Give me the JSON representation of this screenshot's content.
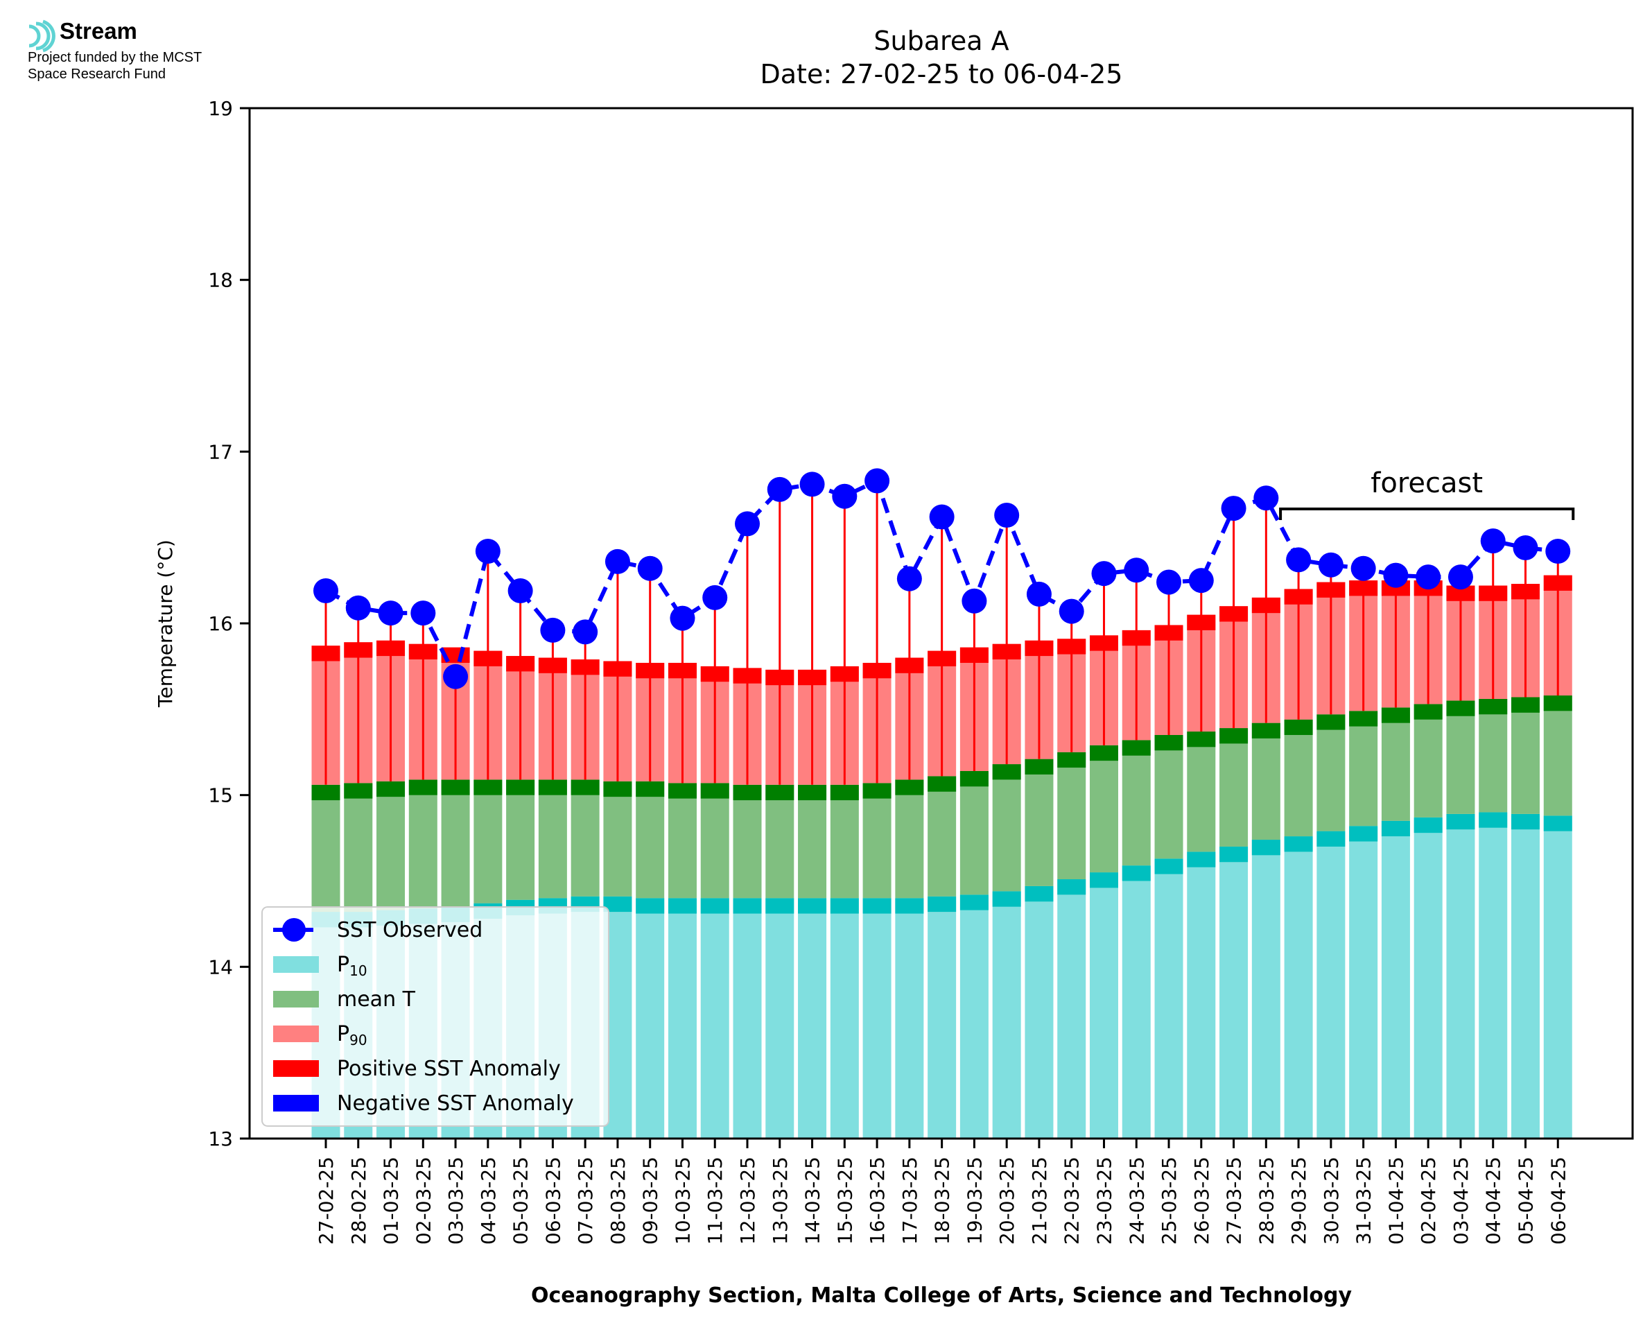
{
  "logo": {
    "name": "Stream",
    "line1": "Project funded by the MCST",
    "line2": "Space Research Fund",
    "color": "#5fd3d3"
  },
  "chart_data": {
    "type": "bar",
    "title": "Subarea A",
    "subtitle": "Date: 27-02-25 to 06-04-25",
    "ylabel": "Temperature (°C)",
    "xlabel": "Oceanography Section, Malta College of Arts, Science and Technology",
    "ylim": [
      13,
      19
    ],
    "yticks": [
      13,
      14,
      15,
      16,
      17,
      18,
      19
    ],
    "legend_position": "lower-left",
    "categories": [
      "27-02-25",
      "28-02-25",
      "01-03-25",
      "02-03-25",
      "03-03-25",
      "04-03-25",
      "05-03-25",
      "06-03-25",
      "07-03-25",
      "08-03-25",
      "09-03-25",
      "10-03-25",
      "11-03-25",
      "12-03-25",
      "13-03-25",
      "14-03-25",
      "15-03-25",
      "16-03-25",
      "17-03-25",
      "18-03-25",
      "19-03-25",
      "20-03-25",
      "21-03-25",
      "22-03-25",
      "23-03-25",
      "24-03-25",
      "25-03-25",
      "26-03-25",
      "27-03-25",
      "28-03-25",
      "29-03-25",
      "30-03-25",
      "31-03-25",
      "01-04-25",
      "02-04-25",
      "03-04-25",
      "04-04-25",
      "05-04-25",
      "06-04-25"
    ],
    "series": [
      {
        "name": "SST Observed",
        "color": "#0000ff",
        "values": [
          16.19,
          16.09,
          16.06,
          16.06,
          15.69,
          16.42,
          16.19,
          15.96,
          15.95,
          16.36,
          16.32,
          16.03,
          16.15,
          16.58,
          16.78,
          16.81,
          16.74,
          16.83,
          16.26,
          16.62,
          16.13,
          16.63,
          16.17,
          16.07,
          16.29,
          16.31,
          16.24,
          16.25,
          16.67,
          16.73,
          16.37,
          16.34,
          16.32,
          16.28,
          16.27,
          16.27,
          16.48,
          16.44,
          16.42
        ]
      },
      {
        "name": "P10",
        "color": "#80dfdf",
        "values": [
          14.32,
          14.32,
          14.33,
          14.34,
          14.35,
          14.37,
          14.39,
          14.4,
          14.41,
          14.41,
          14.4,
          14.4,
          14.4,
          14.4,
          14.4,
          14.4,
          14.4,
          14.4,
          14.4,
          14.41,
          14.42,
          14.44,
          14.47,
          14.51,
          14.55,
          14.59,
          14.63,
          14.67,
          14.7,
          14.74,
          14.76,
          14.79,
          14.82,
          14.85,
          14.87,
          14.89,
          14.9,
          14.89,
          14.88
        ]
      },
      {
        "name": "mean T",
        "color": "#80bf80",
        "values": [
          15.06,
          15.07,
          15.08,
          15.09,
          15.09,
          15.09,
          15.09,
          15.09,
          15.09,
          15.08,
          15.08,
          15.07,
          15.07,
          15.06,
          15.06,
          15.06,
          15.06,
          15.07,
          15.09,
          15.11,
          15.14,
          15.18,
          15.21,
          15.25,
          15.29,
          15.32,
          15.35,
          15.37,
          15.39,
          15.42,
          15.44,
          15.47,
          15.49,
          15.51,
          15.53,
          15.55,
          15.56,
          15.57,
          15.58
        ]
      },
      {
        "name": "P90",
        "color": "#ff8080",
        "values": [
          15.87,
          15.89,
          15.9,
          15.88,
          15.86,
          15.84,
          15.81,
          15.8,
          15.79,
          15.78,
          15.77,
          15.77,
          15.75,
          15.74,
          15.73,
          15.73,
          15.75,
          15.77,
          15.8,
          15.84,
          15.86,
          15.88,
          15.9,
          15.91,
          15.93,
          15.96,
          15.99,
          16.05,
          16.1,
          16.15,
          16.2,
          16.24,
          16.25,
          16.25,
          16.25,
          16.22,
          16.22,
          16.23,
          16.28
        ]
      }
    ],
    "anomaly_legend": [
      {
        "name": "Positive SST Anomaly",
        "color": "#ff0000"
      },
      {
        "name": "Negative SST Anomaly",
        "color": "#0000ff"
      }
    ],
    "band_colors": {
      "p10_edge": "#00bfbf",
      "mean_edge": "#007f00",
      "p90_edge": "#ff0000"
    },
    "forecast": {
      "label": "forecast",
      "from": "29-03-25",
      "to": "06-04-25"
    }
  }
}
